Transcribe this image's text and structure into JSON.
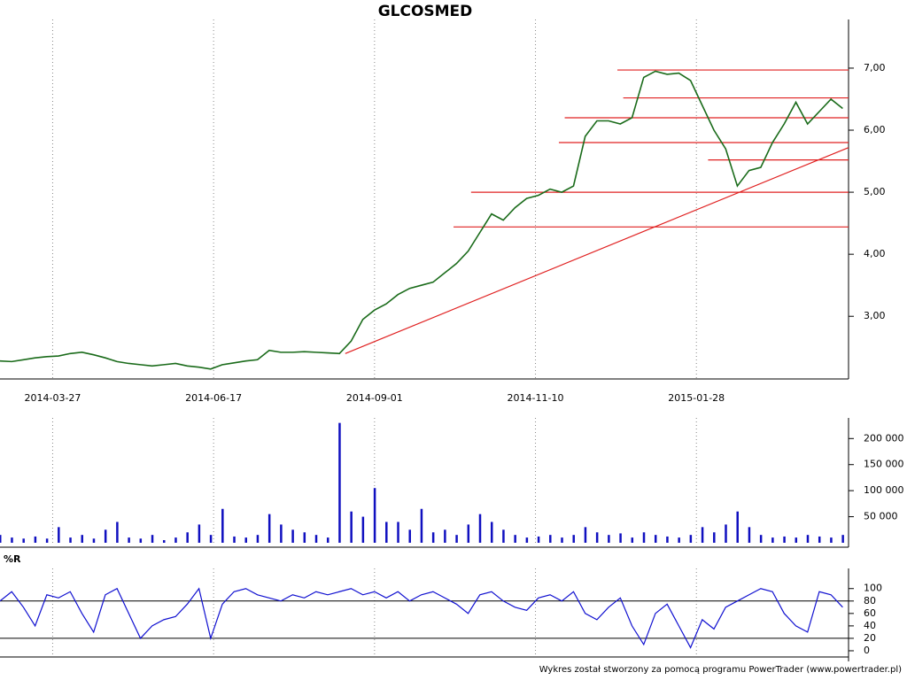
{
  "title": "GLCOSMED",
  "footer": "Wykres został stworzony za pomocą programu PowerTrader (www.powertrader.pl)",
  "chart_data": [
    {
      "type": "line",
      "color": "#1a6b1a",
      "x": [
        0,
        4,
        8,
        12,
        16,
        20,
        24,
        28,
        32,
        36,
        40,
        44,
        48,
        52,
        56,
        60,
        64,
        68,
        72,
        76,
        80,
        84,
        88,
        92,
        96,
        100,
        104,
        108,
        112,
        116,
        120,
        124,
        128,
        132,
        136,
        140,
        144,
        148,
        152,
        156,
        160,
        164,
        168,
        172,
        176,
        180,
        184,
        188,
        192,
        196,
        200,
        204,
        208,
        212,
        216,
        220,
        224,
        228,
        232,
        236,
        240,
        244,
        248,
        252,
        256,
        260,
        264,
        268,
        272,
        276,
        280,
        284,
        288
      ],
      "values": [
        2.28,
        2.27,
        2.3,
        2.33,
        2.35,
        2.36,
        2.4,
        2.42,
        2.38,
        2.33,
        2.27,
        2.24,
        2.22,
        2.2,
        2.22,
        2.24,
        2.2,
        2.18,
        2.15,
        2.22,
        2.25,
        2.28,
        2.3,
        2.45,
        2.42,
        2.42,
        2.43,
        2.42,
        2.41,
        2.4,
        2.6,
        2.95,
        3.1,
        3.2,
        3.35,
        3.45,
        3.5,
        3.55,
        3.7,
        3.85,
        4.05,
        4.35,
        4.65,
        4.55,
        4.75,
        4.9,
        4.95,
        5.05,
        5.0,
        5.1,
        5.9,
        6.15,
        6.15,
        6.1,
        6.2,
        6.85,
        6.95,
        6.9,
        6.92,
        6.8,
        6.4,
        6.0,
        5.7,
        5.1,
        5.35,
        5.4,
        5.8,
        6.1,
        6.45,
        6.1,
        6.3,
        6.5,
        6.35
      ],
      "xlim": [
        0,
        290
      ],
      "xticks": [
        {
          "value": 18,
          "label": "2014-03-27"
        },
        {
          "value": 73,
          "label": "2014-06-17"
        },
        {
          "value": 128,
          "label": "2014-09-01"
        },
        {
          "value": 183,
          "label": "2014-11-10"
        },
        {
          "value": 238,
          "label": "2015-01-28"
        }
      ],
      "ylim": [
        1.99,
        7.67
      ],
      "yticks": [
        {
          "value": 3,
          "label": "3,00"
        },
        {
          "value": 4,
          "label": "4,00"
        },
        {
          "value": 5,
          "label": "5,00"
        },
        {
          "value": 6,
          "label": "6,00"
        },
        {
          "value": 7,
          "label": "7,00"
        }
      ],
      "levels_color": "#e02020",
      "levels": [
        {
          "value": 6.97,
          "from": 211
        },
        {
          "value": 6.52,
          "from": 213
        },
        {
          "value": 6.2,
          "from": 193
        },
        {
          "value": 5.8,
          "from": 191
        },
        {
          "value": 5.52,
          "from": 242
        },
        {
          "value": 5.0,
          "from": 161
        },
        {
          "value": 4.44,
          "from": 155
        }
      ],
      "trendline": {
        "x": [
          118,
          290
        ],
        "y": [
          2.4,
          5.72
        ]
      }
    },
    {
      "type": "bar",
      "color": "#1010c0",
      "x": [
        0,
        4,
        8,
        12,
        16,
        20,
        24,
        28,
        32,
        36,
        40,
        44,
        48,
        52,
        56,
        60,
        64,
        68,
        72,
        76,
        80,
        84,
        88,
        92,
        96,
        100,
        104,
        108,
        112,
        116,
        120,
        124,
        128,
        132,
        136,
        140,
        144,
        148,
        152,
        156,
        160,
        164,
        168,
        172,
        176,
        180,
        184,
        188,
        192,
        196,
        200,
        204,
        208,
        212,
        216,
        220,
        224,
        228,
        232,
        236,
        240,
        244,
        248,
        252,
        256,
        260,
        264,
        268,
        272,
        276,
        280,
        284,
        288
      ],
      "values": [
        15000,
        10000,
        8000,
        12000,
        8000,
        30000,
        10000,
        15000,
        8000,
        25000,
        40000,
        10000,
        8000,
        15000,
        5000,
        10000,
        20000,
        35000,
        15000,
        65000,
        12000,
        10000,
        15000,
        55000,
        35000,
        25000,
        20000,
        15000,
        10000,
        230000,
        60000,
        50000,
        105000,
        40000,
        40000,
        25000,
        65000,
        20000,
        25000,
        15000,
        35000,
        55000,
        40000,
        25000,
        15000,
        10000,
        12000,
        15000,
        10000,
        15000,
        30000,
        20000,
        15000,
        18000,
        10000,
        20000,
        15000,
        12000,
        10000,
        15000,
        30000,
        20000,
        35000,
        60000,
        30000,
        15000,
        10000,
        12000,
        10000,
        15000,
        12000,
        10000,
        15000
      ],
      "xlim": [
        0,
        290
      ],
      "ylim": [
        0,
        226000
      ],
      "yticks": [
        {
          "value": 50000,
          "label": "50 000"
        },
        {
          "value": 100000,
          "label": "100 000"
        },
        {
          "value": 150000,
          "label": "150 000"
        },
        {
          "value": 200000,
          "label": "200 000"
        }
      ]
    },
    {
      "type": "line",
      "title": "%R",
      "color": "#1010d0",
      "x": [
        0,
        4,
        8,
        12,
        16,
        20,
        24,
        28,
        32,
        36,
        40,
        44,
        48,
        52,
        56,
        60,
        64,
        68,
        72,
        76,
        80,
        84,
        88,
        92,
        96,
        100,
        104,
        108,
        112,
        116,
        120,
        124,
        128,
        132,
        136,
        140,
        144,
        148,
        152,
        156,
        160,
        164,
        168,
        172,
        176,
        180,
        184,
        188,
        192,
        196,
        200,
        204,
        208,
        212,
        216,
        220,
        224,
        228,
        232,
        236,
        240,
        244,
        248,
        252,
        256,
        260,
        264,
        268,
        272,
        276,
        280,
        284,
        288
      ],
      "values": [
        80,
        95,
        70,
        40,
        90,
        85,
        95,
        60,
        30,
        90,
        100,
        60,
        20,
        40,
        50,
        55,
        75,
        100,
        20,
        75,
        95,
        100,
        90,
        85,
        80,
        90,
        85,
        95,
        90,
        95,
        100,
        90,
        95,
        85,
        95,
        80,
        90,
        95,
        85,
        75,
        60,
        90,
        95,
        80,
        70,
        65,
        85,
        90,
        80,
        95,
        60,
        50,
        70,
        85,
        40,
        10,
        60,
        75,
        40,
        5,
        50,
        35,
        70,
        80,
        90,
        100,
        95,
        60,
        40,
        30,
        95,
        90,
        70
      ],
      "xlim": [
        0,
        290
      ],
      "ylim": [
        -10,
        121
      ],
      "yticks": [
        0,
        20,
        40,
        60,
        80,
        100
      ],
      "levels": [
        20,
        80
      ]
    }
  ]
}
